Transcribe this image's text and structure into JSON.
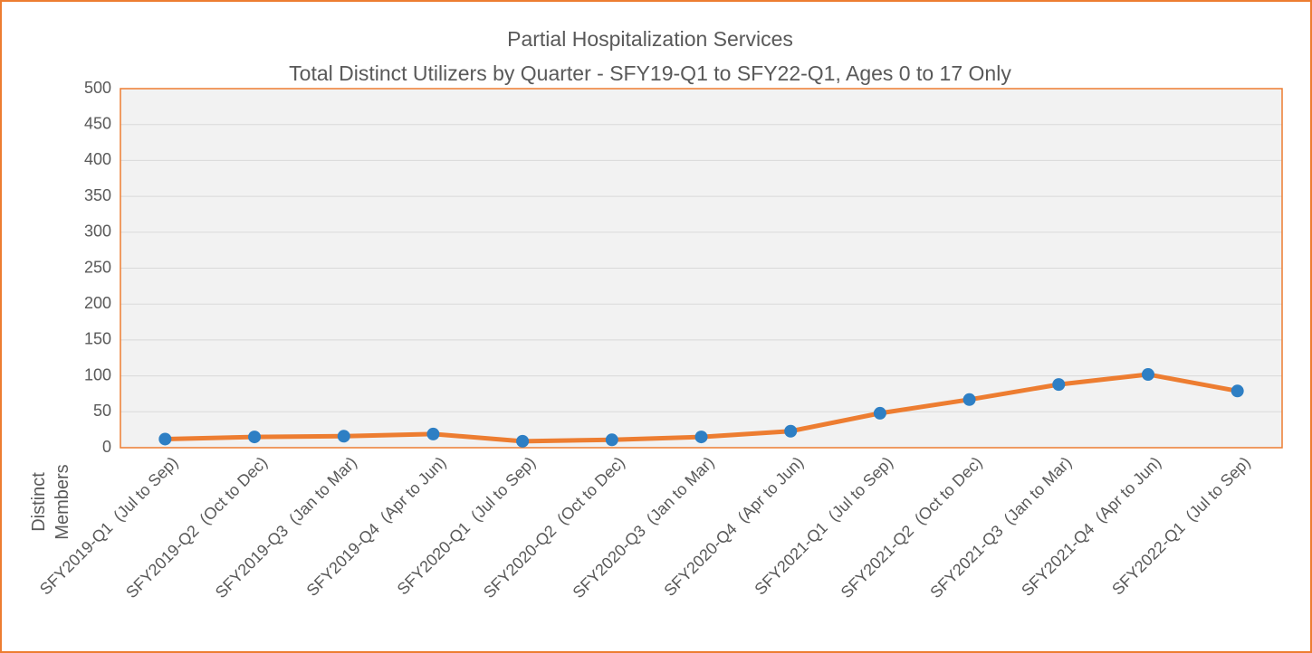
{
  "chart_data": {
    "type": "line",
    "title": "Partial Hospitalization Services",
    "subtitle": "Total Distinct Utilizers by Quarter - SFY19-Q1 to SFY22-Q1, Ages 0 to 17 Only",
    "ylabel": "Distinct Members",
    "categories": [
      "SFY2019-Q1  (Jul to Sep)",
      "SFY2019-Q2  (Oct to Dec)",
      "SFY2019-Q3  (Jan to Mar)",
      "SFY2019-Q4  (Apr to Jun)",
      "SFY2020-Q1  (Jul to Sep)",
      "SFY2020-Q2  (Oct to Dec)",
      "SFY2020-Q3  (Jan to Mar)",
      "SFY2020-Q4  (Apr to Jun)",
      "SFY2021-Q1  (Jul to Sep)",
      "SFY2021-Q2  (Oct to Dec)",
      "SFY2021-Q3  (Jan to Mar)",
      "SFY2021-Q4  (Apr to Jun)",
      "SFY2022-Q1  (Jul to Sep)"
    ],
    "series": [
      {
        "name": "Distinct Members",
        "color": "#ed7d31",
        "marker_color": "#2e7fc4",
        "values": [
          12,
          15,
          16,
          19,
          9,
          11,
          15,
          23,
          48,
          67,
          88,
          102,
          79
        ]
      }
    ],
    "ylim": [
      0,
      500
    ],
    "yticks": [
      0,
      50,
      100,
      150,
      200,
      250,
      300,
      350,
      400,
      450,
      500
    ],
    "grid": true
  }
}
